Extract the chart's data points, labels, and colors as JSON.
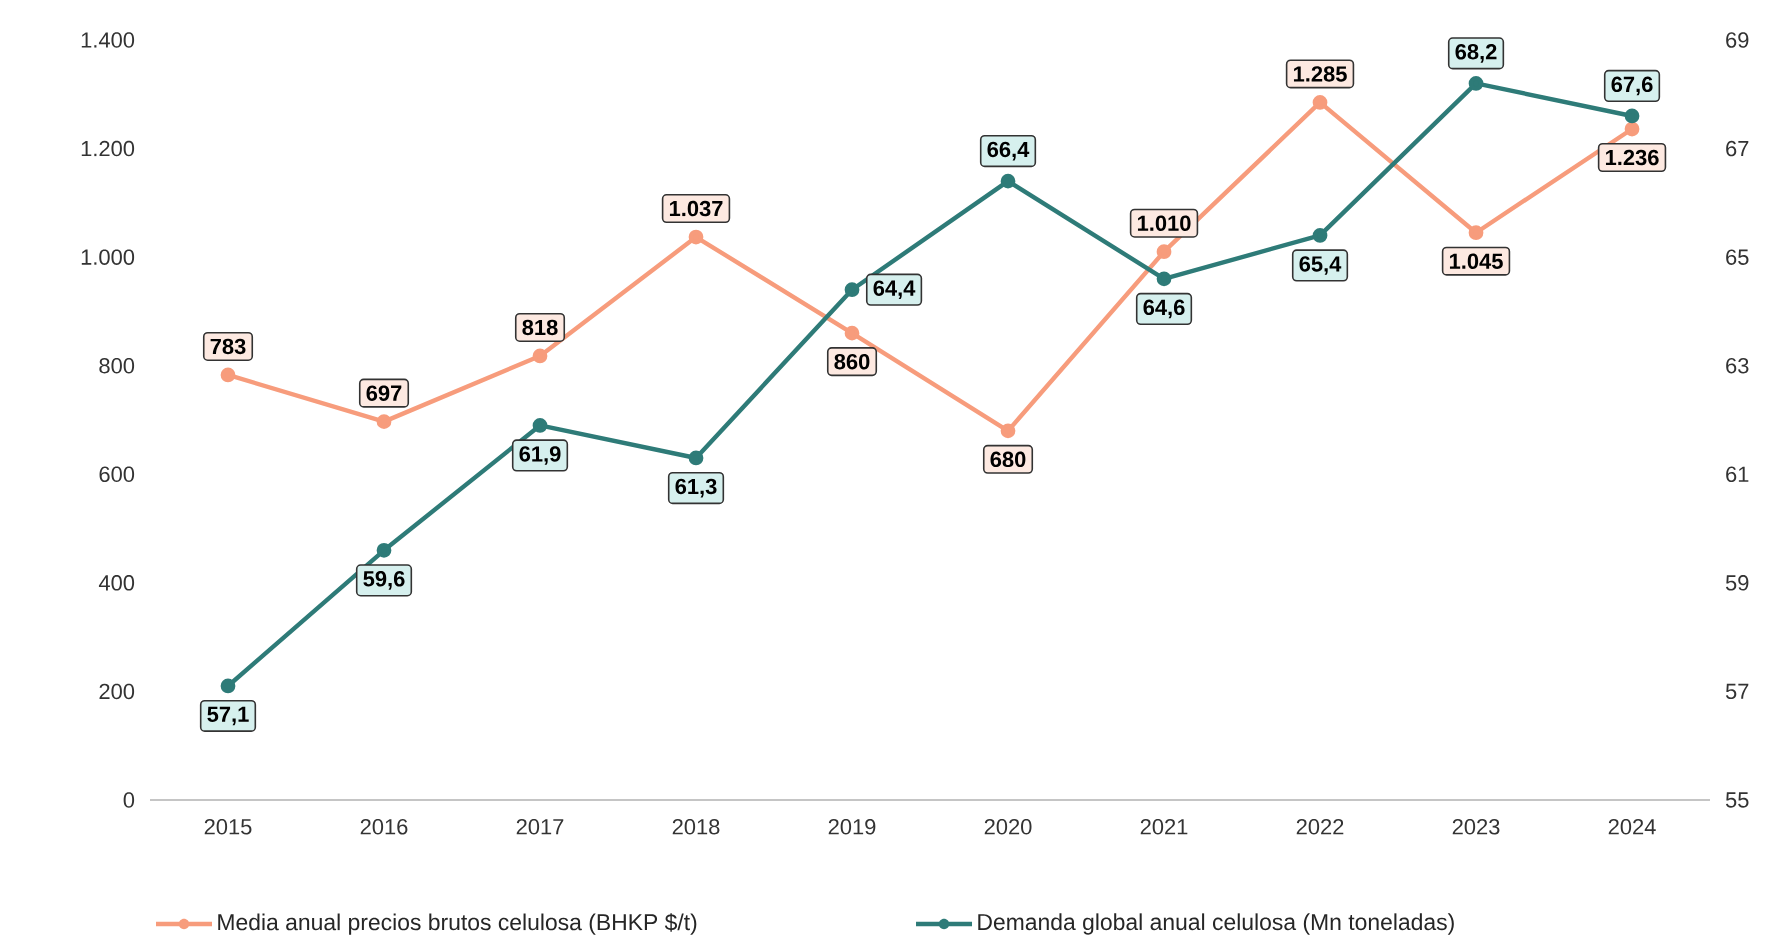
{
  "chart_data": {
    "type": "line",
    "categories": [
      "2015",
      "2016",
      "2017",
      "2018",
      "2019",
      "2020",
      "2021",
      "2022",
      "2023",
      "2024"
    ],
    "series": [
      {
        "name": "Media anual precios brutos celulosa (BHKP $/t)",
        "color": "#f79c7c",
        "values": [
          783,
          697,
          818,
          1037,
          860,
          680,
          1010,
          1285,
          1045,
          1236
        ],
        "value_labels": [
          "783",
          "697",
          "818",
          "1.037",
          "860",
          "680",
          "1.010",
          "1.285",
          "1.045",
          "1.236"
        ]
      },
      {
        "name": "Demanda global anual celulosa (Mn toneladas)",
        "color": "#2e7b78",
        "axis": "y2",
        "values": [
          57.1,
          59.6,
          61.9,
          61.3,
          64.4,
          66.4,
          64.6,
          65.4,
          68.2,
          67.6
        ],
        "value_labels": [
          "57,1",
          "59,6",
          "61,9",
          "61,3",
          "64,4",
          "66,4",
          "64,6",
          "65,4",
          "68,2",
          "67,6"
        ]
      }
    ],
    "ylim": [
      0,
      1400
    ],
    "yticks": [
      0,
      200,
      400,
      600,
      800,
      {
        "value": 1000,
        "label": "1.000"
      },
      {
        "value": 1200,
        "label": "1.200"
      },
      {
        "value": 1400,
        "label": "1.400"
      }
    ],
    "y2lim": [
      55,
      69
    ],
    "y2ticks": [
      55,
      57,
      59,
      61,
      63,
      65,
      67,
      69
    ],
    "legend": "bottom",
    "marker": "circle",
    "line_style": "solid",
    "grid": false
  }
}
